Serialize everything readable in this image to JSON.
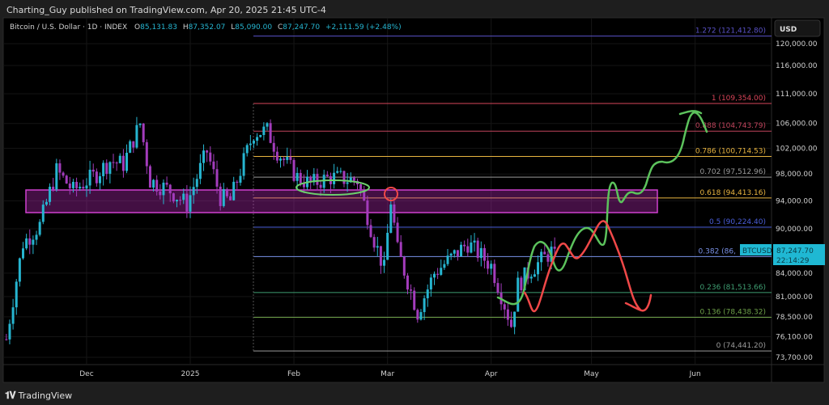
{
  "publisher_line": "Charting_Guy published on TradingView.com, Apr 20, 2025 21:45 UTC-4",
  "legend": {
    "symbol": "Bitcoin / U.S. Dollar · 1D · INDEX",
    "o_label": "O",
    "o": "85,131.83",
    "h_label": "H",
    "h": "87,352.07",
    "l_label": "L",
    "l": "85,090.00",
    "c_label": "C",
    "c": "87,247.70",
    "change": "+2,111.59 (+2.48%)"
  },
  "currency_button": "USD",
  "last_price": {
    "symbol": "BTCUSD",
    "price": "87,247.70",
    "countdown": "22:14:29",
    "color": "#1fb8d3"
  },
  "footer_logo": "TradingView",
  "colors": {
    "up": "#26b5d0",
    "down": "#a33cbc",
    "zone": "#c02bc0",
    "green_path": "#5cc25c",
    "red_path": "#f04848"
  },
  "chart_data": {
    "type": "candlestick",
    "scale": "log",
    "ylim": [
      73000,
      123000
    ],
    "y_ticks": [
      "120,000.00",
      "116,000.00",
      "111,000.00",
      "106,000.00",
      "102,000.00",
      "98,000.00",
      "94,000.00",
      "90,000.00",
      "84,000.00",
      "81,000.00",
      "78,500.00",
      "76,100.00",
      "73,700.00"
    ],
    "y_tick_values": [
      120000,
      116000,
      111000,
      106000,
      102000,
      98000,
      94000,
      90000,
      84000,
      81000,
      78500,
      76100,
      73700
    ],
    "x_ticks": [
      "Dec",
      "2025",
      "Feb",
      "Mar",
      "Apr",
      "May",
      "Jun"
    ],
    "x_tick_dates": [
      "2024-12-01",
      "2025-01-01",
      "2025-02-01",
      "2025-03-01",
      "2025-04-01",
      "2025-05-01",
      "2025-06-01"
    ],
    "x_range": [
      "2024-11-05",
      "2025-06-20"
    ],
    "approx_close_path": [
      [
        "2024-11-07",
        75800
      ],
      [
        "2024-11-12",
        88000
      ],
      [
        "2024-11-17",
        90500
      ],
      [
        "2024-11-22",
        98500
      ],
      [
        "2024-11-27",
        95500
      ],
      [
        "2024-12-04",
        98000
      ],
      [
        "2024-12-08",
        100000
      ],
      [
        "2024-12-12",
        99500
      ],
      [
        "2024-12-17",
        106000
      ],
      [
        "2024-12-20",
        97000
      ],
      [
        "2024-12-26",
        95500
      ],
      [
        "2024-12-31",
        93500
      ],
      [
        "2025-01-06",
        101500
      ],
      [
        "2025-01-10",
        94500
      ],
      [
        "2025-01-13",
        94000
      ],
      [
        "2025-01-20",
        104500
      ],
      [
        "2025-01-24",
        104800
      ],
      [
        "2025-01-27",
        101500
      ],
      [
        "2025-02-02",
        97500
      ],
      [
        "2025-02-06",
        96500
      ],
      [
        "2025-02-12",
        97500
      ],
      [
        "2025-02-20",
        97000
      ],
      [
        "2025-02-25",
        88500
      ],
      [
        "2025-02-28",
        84500
      ],
      [
        "2025-03-02",
        94000
      ],
      [
        "2025-03-04",
        87000
      ],
      [
        "2025-03-10",
        79000
      ],
      [
        "2025-03-15",
        84000
      ],
      [
        "2025-03-20",
        86000
      ],
      [
        "2025-03-25",
        88000
      ],
      [
        "2025-04-01",
        85000
      ],
      [
        "2025-04-07",
        77500
      ],
      [
        "2025-04-09",
        82500
      ],
      [
        "2025-04-13",
        84500
      ],
      [
        "2025-04-20",
        87247.7
      ]
    ],
    "fib_levels": [
      {
        "label": "1.272 (121,412.80)",
        "price": 121412.8,
        "color": "#5a52c8"
      },
      {
        "label": "1 (109,354.00)",
        "price": 109354.0,
        "color": "#d9465a"
      },
      {
        "label": "0.888 (104,743.79)",
        "price": 104743.79,
        "color": "#c0445c"
      },
      {
        "label": "0.786 (100,714.53)",
        "price": 100714.53,
        "color": "#e8b440"
      },
      {
        "label": "0.702 (97,512.96)",
        "price": 97512.96,
        "color": "#9a9a9a"
      },
      {
        "label": "0.618 (94,413.16)",
        "price": 94413.16,
        "color": "#e8b440"
      },
      {
        "label": "0.5 (90,224.40)",
        "price": 90224.4,
        "color": "#4a5ed8"
      },
      {
        "label": "0.382 (86,",
        "price": 86200,
        "color": "#7a92e8"
      },
      {
        "label": "0.236 (81,513.66)",
        "price": 81513.66,
        "color": "#3f9e72"
      },
      {
        "label": "0.136 (78,438.32)",
        "price": 78438.32,
        "color": "#6fa24a"
      },
      {
        "label": "0 (74,441.20)",
        "price": 74441.2,
        "color": "#9a9a9a"
      }
    ]
  }
}
